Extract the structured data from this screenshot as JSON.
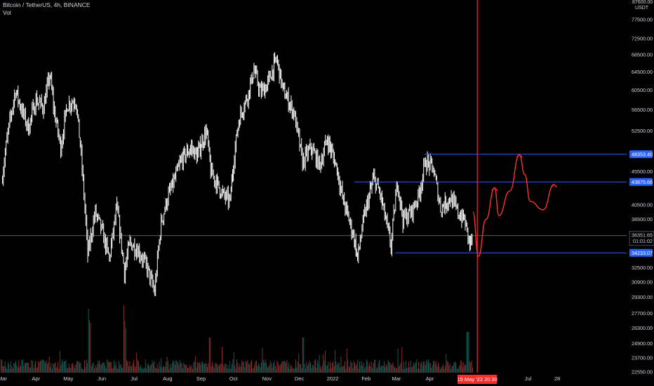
{
  "header": {
    "symbol_line": "Bitcoin / TetherUS, 4h, BINANCE",
    "volume_label": "Vol"
  },
  "currency_label": "USDT",
  "top_clipped_tick": "87600.00",
  "colors": {
    "background": "#000000",
    "candles": "#ffffff",
    "volume_up": "#26a69a",
    "volume_down": "#ef5350",
    "marker_line": "#ff2a2a",
    "level_lines": "#2962ff",
    "projection": "#ff3030",
    "current_price_line": "#9e9e9e"
  },
  "chart_data": {
    "type": "line",
    "title": "",
    "xlabel": "",
    "ylabel": "",
    "ylim": [
      22550,
      87600
    ],
    "y_scale": "log",
    "grid": false,
    "y_ticks": [
      22550,
      23700,
      24900,
      26300,
      27700,
      29300,
      30900,
      32500,
      34200,
      36200,
      38500,
      40500,
      42500,
      45500,
      48500,
      52500,
      56500,
      60500,
      64500,
      68500,
      72500,
      77500
    ],
    "y_tick_labels": [
      "22550.00",
      "23700.00",
      "24900.00",
      "26300.00",
      "27700.00",
      "29300.00",
      "30900.00",
      "32500.00",
      "34200.00",
      "36200.00",
      "38500.00",
      "40500.00",
      "42500.00",
      "45500.00",
      "48500.00",
      "52500.00",
      "56500.00",
      "60500.00",
      "64500.00",
      "68500.00",
      "72500.00",
      "77500.00"
    ],
    "x_ticks": [
      "Mar",
      "Apr",
      "May",
      "Jun",
      "Jul",
      "Aug",
      "Sep",
      "Oct",
      "Nov",
      "Dec",
      "2022",
      "Feb",
      "Mar",
      "Apr",
      "Jul",
      "28"
    ],
    "series": [
      {
        "values": [
          [
            "2021-03-01",
            45000
          ],
          [
            "2021-03-06",
            52000
          ],
          [
            "2021-03-13",
            60500
          ],
          [
            "2021-03-18",
            57000
          ],
          [
            "2021-03-25",
            53000
          ],
          [
            "2021-04-01",
            58500
          ],
          [
            "2021-04-08",
            57000
          ],
          [
            "2021-04-14",
            63800
          ],
          [
            "2021-04-18",
            56000
          ],
          [
            "2021-04-24",
            49500
          ],
          [
            "2021-04-30",
            57500
          ],
          [
            "2021-05-08",
            58500
          ],
          [
            "2021-05-12",
            50000
          ],
          [
            "2021-05-19",
            34000
          ],
          [
            "2021-05-26",
            39500
          ],
          [
            "2021-06-01",
            37000
          ],
          [
            "2021-06-08",
            33500
          ],
          [
            "2021-06-15",
            40000
          ],
          [
            "2021-06-22",
            32000
          ],
          [
            "2021-06-27",
            35500
          ],
          [
            "2021-07-05",
            34500
          ],
          [
            "2021-07-13",
            32500
          ],
          [
            "2021-07-20",
            29800
          ],
          [
            "2021-07-26",
            38000
          ],
          [
            "2021-08-01",
            41500
          ],
          [
            "2021-08-07",
            44000
          ],
          [
            "2021-08-14",
            47500
          ],
          [
            "2021-08-23",
            49500
          ],
          [
            "2021-08-28",
            48000
          ],
          [
            "2021-09-06",
            52500
          ],
          [
            "2021-09-10",
            45500
          ],
          [
            "2021-09-21",
            42000
          ],
          [
            "2021-09-28",
            41000
          ],
          [
            "2021-10-01",
            47000
          ],
          [
            "2021-10-06",
            54500
          ],
          [
            "2021-10-15",
            60000
          ],
          [
            "2021-10-20",
            65000
          ],
          [
            "2021-10-26",
            60000
          ],
          [
            "2021-11-01",
            61500
          ],
          [
            "2021-11-10",
            67500
          ],
          [
            "2021-11-16",
            60500
          ],
          [
            "2021-11-26",
            56000
          ],
          [
            "2021-12-04",
            47000
          ],
          [
            "2021-12-12",
            49500
          ],
          [
            "2021-12-20",
            46500
          ],
          [
            "2021-12-27",
            51000
          ],
          [
            "2022-01-05",
            46000
          ],
          [
            "2022-01-10",
            41500
          ],
          [
            "2022-01-21",
            36000
          ],
          [
            "2022-01-24",
            33500
          ],
          [
            "2022-01-29",
            38000
          ],
          [
            "2022-02-08",
            44500
          ],
          [
            "2022-02-14",
            42000
          ],
          [
            "2022-02-24",
            35000
          ],
          [
            "2022-03-02",
            44000
          ],
          [
            "2022-03-07",
            38500
          ],
          [
            "2022-03-15",
            39500
          ],
          [
            "2022-03-22",
            42000
          ],
          [
            "2022-03-28",
            47200
          ],
          [
            "2022-04-04",
            46000
          ],
          [
            "2022-04-11",
            40000
          ],
          [
            "2022-04-20",
            41500
          ],
          [
            "2022-04-28",
            39200
          ],
          [
            "2022-05-03",
            38500
          ],
          [
            "2022-05-08",
            35300
          ],
          [
            "2022-05-11",
            36250
          ]
        ]
      }
    ],
    "horizontal_levels": [
      {
        "price": 48353.4,
        "label": "48353.40"
      },
      {
        "price": 43875.66,
        "label": "43875.66"
      },
      {
        "price": 34233.07,
        "label": "34233.07"
      }
    ],
    "current_price": {
      "value": 36351.65,
      "label": "36351.65",
      "countdown": "01:01:02"
    },
    "vertical_marker": {
      "date": "2022-05-15",
      "label": "15 May '22   20:30"
    },
    "projection_path": [
      [
        "2022-05-11",
        39500
      ],
      [
        "2022-05-16",
        33800
      ],
      [
        "2022-05-23",
        38500
      ],
      [
        "2022-05-31",
        43000
      ],
      [
        "2022-06-04",
        39000
      ],
      [
        "2022-06-14",
        42500
      ],
      [
        "2022-06-23",
        48300
      ],
      [
        "2022-06-28",
        45000
      ],
      [
        "2022-07-03",
        41000
      ],
      [
        "2022-07-15",
        39800
      ],
      [
        "2022-07-25",
        43500
      ]
    ]
  }
}
